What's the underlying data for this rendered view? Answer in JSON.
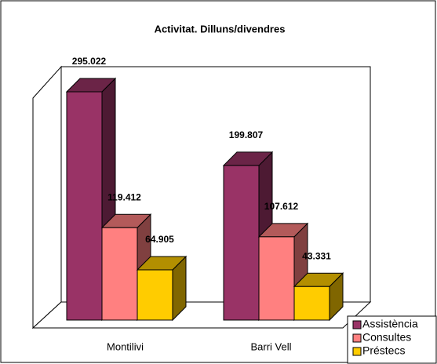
{
  "chart_data": {
    "type": "bar3d",
    "title": "Activitat. Dilluns/divendres",
    "categories": [
      "Montilivi",
      "Barri Vell"
    ],
    "series": [
      {
        "name": "Assistència",
        "color": "#993366",
        "values": [
          295022,
          199807
        ],
        "value_labels": [
          "295.022",
          "199.807"
        ]
      },
      {
        "name": "Consultes",
        "color": "#ff8080",
        "values": [
          119412,
          107612
        ],
        "value_labels": [
          "119.412",
          "107.612"
        ]
      },
      {
        "name": "Préstecs",
        "color": "#ffcc00",
        "values": [
          64905,
          43331
        ],
        "value_labels": [
          "64.905",
          "43.331"
        ]
      }
    ],
    "legend": "bottom-right"
  }
}
